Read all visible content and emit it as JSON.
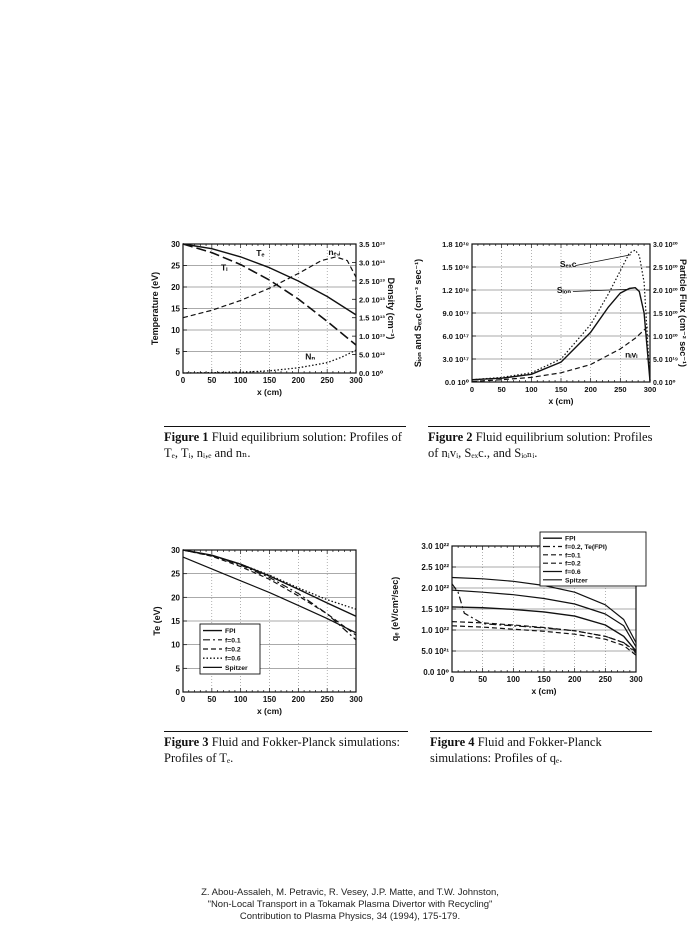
{
  "chart_data": [
    {
      "id": "fig1",
      "type": "line",
      "xlabel": "x (cm)",
      "ylabel": "Temperature (eV)",
      "y2label": "Density (cm⁻³)",
      "xlim": [
        0,
        300
      ],
      "ylim": [
        0,
        30
      ],
      "xticks": [
        "0",
        "50",
        "100",
        "150",
        "200",
        "250",
        "300"
      ],
      "yticks": [
        "0",
        "5",
        "10",
        "15",
        "20",
        "25",
        "30"
      ],
      "y2ticks": [
        "0.0 10⁰",
        "5.0 10¹²",
        "1.0 10¹³",
        "1.5 10¹³",
        "2.0 10¹³",
        "2.5 10¹³",
        "3.0 10¹³",
        "3.5 10¹³"
      ],
      "y2lim": [
        0,
        35000000000000.0
      ],
      "series": [
        {
          "name": "Tₑ",
          "style": "solid",
          "width": 1.4,
          "x": [
            0,
            50,
            100,
            150,
            200,
            250,
            300
          ],
          "y": [
            30,
            28.9,
            27,
            24.5,
            21.4,
            17.8,
            13.5
          ]
        },
        {
          "name": "Tᵢ",
          "style": "longdash",
          "width": 1.6,
          "x": [
            0,
            50,
            100,
            150,
            200,
            250,
            300
          ],
          "y": [
            30,
            28,
            25.2,
            21.6,
            17.2,
            12,
            6.5
          ]
        },
        {
          "name": "nₑ,ᵢ",
          "style": "dash",
          "width": 1.2,
          "axis": "y2",
          "x": [
            0,
            50,
            100,
            150,
            200,
            240,
            265,
            285,
            300
          ],
          "y": [
            15000000000000.0,
            17000000000000.0,
            19700000000000.0,
            23000000000000.0,
            27000000000000.0,
            30500000000000.0,
            31500000000000.0,
            30500000000000.0,
            26000000000000.0
          ]
        },
        {
          "name": "Nₙ",
          "style": "dot",
          "width": 1.3,
          "axis": "y2",
          "x": [
            0,
            100,
            150,
            200,
            250,
            275,
            300
          ],
          "y": [
            0,
            200000000000.0,
            600000000000.0,
            1400000000000.0,
            2800000000000.0,
            4300000000000.0,
            6200000000000.0
          ]
        }
      ],
      "labels": [
        {
          "text": "Tₑ",
          "x": 127,
          "y": 27.2
        },
        {
          "text": "Tᵢ",
          "x": 66,
          "y": 23.8
        },
        {
          "text": "nₑ,ᵢ",
          "x": 252,
          "y": 27.5
        },
        {
          "text": "Nₙ",
          "x": 212,
          "y": 3.1
        }
      ]
    },
    {
      "id": "fig2",
      "type": "line",
      "xlabel": "x (cm)",
      "ylabel": "Sᵢₒₙ and Sₑₓc (cm⁻³ sec⁻¹)",
      "y2label": "Particle Flux (cm⁻² sec⁻¹)",
      "xlim": [
        0,
        300
      ],
      "ylim": [
        0,
        1.8e+18
      ],
      "xticks": [
        "0",
        "50",
        "100",
        "150",
        "200",
        "250",
        "300"
      ],
      "yticks": [
        "0.0 10⁰",
        "3.0 10¹⁷",
        "6.0 10¹⁷",
        "9.0 10¹⁷",
        "1.2 10¹⁸",
        "1.5 10¹⁸",
        "1.8 10¹⁸"
      ],
      "y2ticks": [
        "0.0 10⁰",
        "5.0 10¹⁹",
        "1.0 10²⁰",
        "1.5 10²⁰",
        "2.0 10²⁰",
        "2.5 10²⁰",
        "3.0 10²⁰"
      ],
      "y2lim": [
        0,
        3e+20
      ],
      "series": [
        {
          "name": "Sₑₓc",
          "style": "dot",
          "width": 1.2,
          "x": [
            0,
            50,
            100,
            150,
            200,
            230,
            250,
            265,
            275,
            282,
            290,
            300
          ],
          "y": [
            3e+16,
            6e+16,
            1.2e+17,
            3e+17,
            7.5e+17,
            1.15e+18,
            1.45e+18,
            1.68e+18,
            1.72e+18,
            1.65e+18,
            1.3e+18,
            2e+16
          ]
        },
        {
          "name": "Sᵢₒₙ",
          "style": "solid",
          "width": 1.4,
          "x": [
            0,
            50,
            100,
            150,
            200,
            230,
            250,
            265,
            275,
            282,
            290,
            300
          ],
          "y": [
            3e+16,
            5e+16,
            1e+17,
            2.6e+17,
            6.5e+17,
            9.8e+17,
            1.16e+18,
            1.22e+18,
            1.23e+18,
            1.18e+18,
            9e+17,
            1e+16
          ]
        },
        {
          "name": "nᵢvᵢ",
          "style": "dash",
          "width": 1.2,
          "axis": "y2",
          "x": [
            0,
            50,
            100,
            150,
            200,
            250,
            275,
            300
          ],
          "y": [
            1e+18,
            5e+18,
            1e+19,
            2e+19,
            3.8e+19,
            7.2e+19,
            9.5e+19,
            1.25e+20
          ]
        }
      ],
      "labels": [
        {
          "text": "Sₑₓc",
          "x": 148,
          "y": 1.5e+18
        },
        {
          "text": "Sᵢₒₙ",
          "x": 143,
          "y": 1.16e+18
        },
        {
          "text": "nᵢvᵢ",
          "x": 258,
          "y": 3.2e+17
        }
      ]
    },
    {
      "id": "fig3",
      "type": "line",
      "xlabel": "x (cm)",
      "ylabel": "Te (eV)",
      "xlim": [
        0,
        300
      ],
      "ylim": [
        0,
        30
      ],
      "xticks": [
        "0",
        "50",
        "100",
        "150",
        "200",
        "250",
        "300"
      ],
      "yticks": [
        "0",
        "5",
        "10",
        "15",
        "20",
        "25",
        "30"
      ],
      "legend": "bottom-left",
      "series": [
        {
          "name": "FPI",
          "style": "solid",
          "width": 1.4,
          "x": [
            0,
            50,
            100,
            150,
            200,
            250,
            300
          ],
          "y": [
            30,
            28.9,
            27,
            24.5,
            21.7,
            18.8,
            16
          ]
        },
        {
          "name": "f=0.1",
          "style": "dashdot",
          "width": 1.2,
          "x": [
            0,
            50,
            100,
            150,
            200,
            250,
            300
          ],
          "y": [
            30,
            28.8,
            26.8,
            24.2,
            20.8,
            16.5,
            11
          ]
        },
        {
          "name": "f=0.2",
          "style": "dash",
          "width": 1.2,
          "x": [
            0,
            50,
            100,
            150,
            200,
            250,
            300
          ],
          "y": [
            30,
            28.7,
            26.5,
            23.8,
            20.3,
            16.5,
            12
          ]
        },
        {
          "name": "f=0.6",
          "style": "dot",
          "width": 1.3,
          "x": [
            0,
            50,
            100,
            150,
            200,
            250,
            300
          ],
          "y": [
            30,
            28.8,
            27,
            24.7,
            22,
            19.5,
            17.5
          ]
        },
        {
          "name": "Spitzer",
          "style": "solid",
          "width": 1.2,
          "x": [
            0,
            50,
            100,
            150,
            200,
            250,
            300
          ],
          "y": [
            28.5,
            26,
            23.5,
            21,
            18.3,
            15.5,
            12.5
          ]
        }
      ]
    },
    {
      "id": "fig4",
      "type": "line",
      "xlabel": "x (cm)",
      "ylabel": "qₑ (eV/cm²/sec)",
      "xlim": [
        0,
        300
      ],
      "ylim": [
        0,
        3e+22
      ],
      "xticks": [
        "0",
        "50",
        "100",
        "150",
        "200",
        "250",
        "300"
      ],
      "yticks": [
        "0.0 10⁰",
        "5.0 10²¹",
        "1.0 10²²",
        "1.5 10²²",
        "2.0 10²²",
        "2.5 10²²",
        "3.0 10²²"
      ],
      "legend": "top-right",
      "series": [
        {
          "name": "FPI",
          "style": "solid",
          "width": 1.4,
          "x": [
            0,
            50,
            100,
            150,
            200,
            250,
            280,
            300
          ],
          "y": [
            1.55e+22,
            1.53e+22,
            1.49e+22,
            1.43e+22,
            1.33e+22,
            1.12e+22,
            8.5e+21,
            5e+21
          ]
        },
        {
          "name": "f=0.2, Te(FPI)",
          "style": "dashdot",
          "width": 1.2,
          "x": [
            0,
            10,
            20,
            50,
            100,
            150,
            200,
            250,
            280,
            300
          ],
          "y": [
            2.1e+22,
            1.9e+22,
            1.4e+22,
            1.15e+22,
            1.1e+22,
            1.05e+22,
            9.8e+21,
            8.5e+21,
            7e+21,
            4.5e+21
          ]
        },
        {
          "name": "f=0.1",
          "style": "dash",
          "width": 1.2,
          "x": [
            0,
            50,
            100,
            150,
            200,
            250,
            280,
            300
          ],
          "y": [
            1.1e+22,
            1.07e+22,
            1.02e+22,
            9.7e+21,
            9e+21,
            7.8e+21,
            6.3e+21,
            4e+21
          ]
        },
        {
          "name": "f=0.2",
          "style": "dash",
          "width": 1.2,
          "x": [
            0,
            50,
            100,
            150,
            200,
            250,
            280,
            300
          ],
          "y": [
            1.2e+22,
            1.17e+22,
            1.12e+22,
            1.06e+22,
            9.8e+21,
            8.5e+21,
            7e+21,
            4.8e+21
          ]
        },
        {
          "name": "f=0.6",
          "style": "solid",
          "width": 1.2,
          "x": [
            0,
            50,
            100,
            150,
            200,
            250,
            280,
            300
          ],
          "y": [
            1.95e+22,
            1.9e+22,
            1.84e+22,
            1.75e+22,
            1.62e+22,
            1.38e+22,
            1.1e+22,
            6e+21
          ]
        },
        {
          "name": "Spitzer",
          "style": "solid",
          "width": 1.2,
          "x": [
            0,
            50,
            100,
            150,
            200,
            250,
            280,
            300
          ],
          "y": [
            2.25e+22,
            2.22e+22,
            2.16e+22,
            2.06e+22,
            1.9e+22,
            1.6e+22,
            1.25e+22,
            7e+21
          ]
        }
      ]
    }
  ],
  "captions": {
    "fig1": {
      "num": "Figure 1",
      "text": "Fluid equilibrium solution: Profiles of Tₑ, Tᵢ, nᵢ,ₑ and nₙ."
    },
    "fig2": {
      "num": "Figure 2",
      "text": "Fluid equilibrium solution: Profiles of nᵢvᵢ, Sₑₓc., and Sᵢₒₙᵢ."
    },
    "fig3": {
      "num": "Figure 3",
      "text": "Fluid and Fokker-Planck simulations: Profiles of Tₑ."
    },
    "fig4": {
      "num": "Figure 4",
      "text": "Fluid and Fokker-Planck simulations: Profiles of qₑ."
    }
  },
  "citation": {
    "line1": "Z. Abou-Assaleh, M. Petravic, R. Vesey, J.P. Matte, and T.W. Johnston,",
    "line2": "\"Non-Local Transport in a Tokamak Plasma Divertor with Recycling\"",
    "line3": "Contribution to Plasma Physics, 34 (1994), 175-179."
  }
}
